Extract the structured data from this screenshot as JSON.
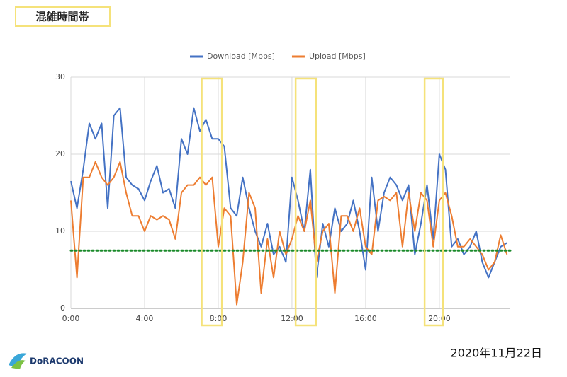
{
  "title": "混雑時間帯",
  "date": "2020年11月22日",
  "logo": "DoRACOON",
  "chart_data": {
    "type": "line",
    "x": [
      0,
      0.33,
      0.67,
      1,
      1.33,
      1.67,
      2,
      2.33,
      2.67,
      3,
      3.33,
      3.67,
      4,
      4.33,
      4.67,
      5,
      5.33,
      5.67,
      6,
      6.33,
      6.67,
      7,
      7.33,
      7.67,
      8,
      8.33,
      8.67,
      9,
      9.33,
      9.67,
      10,
      10.33,
      10.67,
      11,
      11.33,
      11.67,
      12,
      12.33,
      12.67,
      13,
      13.33,
      13.67,
      14,
      14.33,
      14.67,
      15,
      15.33,
      15.67,
      16,
      16.33,
      16.67,
      17,
      17.33,
      17.67,
      18,
      18.33,
      18.67,
      19,
      19.33,
      19.67,
      20,
      20.33,
      20.67,
      21,
      21.33,
      21.67,
      22,
      22.33,
      22.67,
      23,
      23.33,
      23.67
    ],
    "series": [
      {
        "name": "Download [Mbps]",
        "color": "#4472c4",
        "values": [
          16.5,
          13,
          18,
          24,
          22,
          24,
          13,
          25,
          26,
          17,
          16,
          15.5,
          14,
          16.5,
          18.5,
          15,
          15.5,
          13,
          22,
          20,
          26,
          23,
          24.5,
          22,
          22,
          21,
          13,
          12,
          17,
          13,
          10,
          8,
          11,
          7,
          8,
          6,
          17,
          14,
          10,
          18,
          4,
          11,
          8,
          13,
          10,
          11,
          14,
          10,
          5,
          17,
          10,
          15,
          17,
          16,
          14,
          16,
          7,
          11,
          16,
          9,
          20,
          18,
          8,
          9,
          7,
          8,
          10,
          6,
          4,
          6,
          8,
          8.5
        ]
      },
      {
        "name": "Upload [Mbps]",
        "color": "#ed7d31",
        "values": [
          14,
          4,
          17,
          17,
          19,
          17,
          16,
          17,
          19,
          15,
          12,
          12,
          10,
          12,
          11.5,
          12,
          11.5,
          9,
          15,
          16,
          16,
          17,
          16,
          17,
          8,
          13,
          12,
          0.5,
          6,
          15,
          13,
          2,
          9,
          4,
          10,
          7,
          9,
          12,
          10,
          14,
          6,
          10,
          11,
          2,
          12,
          12,
          10,
          13,
          8,
          7,
          14,
          14.5,
          14,
          15,
          8,
          15,
          10,
          15,
          14,
          8,
          14,
          15,
          12,
          8,
          8,
          9,
          8,
          7,
          5,
          6,
          9.5,
          7
        ]
      }
    ],
    "xlim": [
      0,
      23.85
    ],
    "xticks": [
      {
        "value": 0,
        "label": "0:00"
      },
      {
        "value": 4,
        "label": "4:00"
      },
      {
        "value": 8,
        "label": "8:00"
      },
      {
        "value": 12,
        "label": "12:00"
      },
      {
        "value": 16,
        "label": "16:00"
      },
      {
        "value": 20,
        "label": "20:00"
      }
    ],
    "ylim": [
      0,
      30
    ],
    "yticks": [
      0,
      10,
      20,
      30
    ],
    "grid": true,
    "legend": "top",
    "reference_line": {
      "value": 7.5,
      "color": "#1a8a2a"
    },
    "highlights": [
      [
        7.1,
        8.2
      ],
      [
        12.2,
        13.3
      ],
      [
        19.2,
        20.2
      ]
    ],
    "highlight_color": "#f5e27a"
  }
}
